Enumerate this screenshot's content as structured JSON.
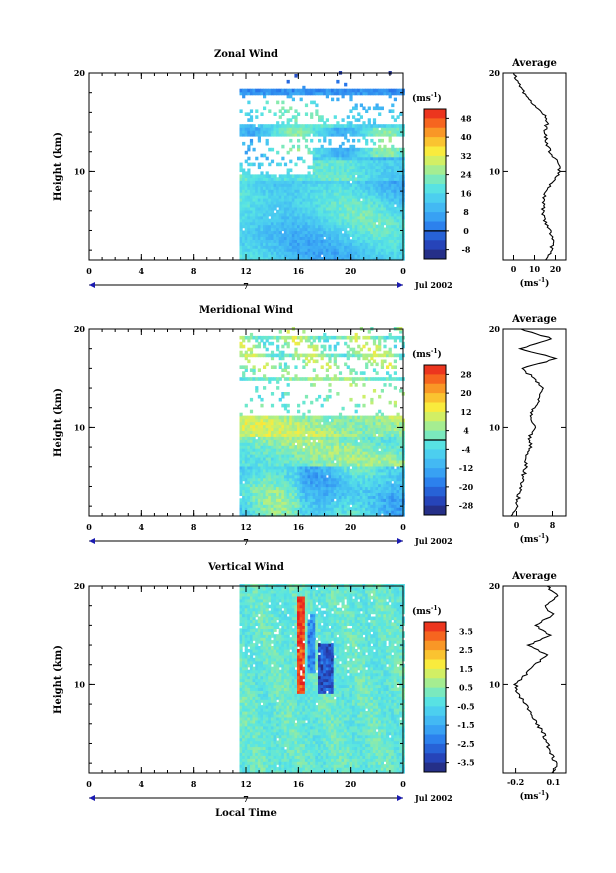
{
  "chart_data": [
    {
      "type": "heatmap",
      "title": "Zonal Wind",
      "ylabel": "Height (km)",
      "y_ticks": [
        "10",
        "20"
      ],
      "ylim": [
        1,
        20
      ],
      "x_ticks": [
        "0",
        "4",
        "8",
        "12",
        "16",
        "20",
        "0"
      ],
      "xlim": [
        0,
        24
      ],
      "data_start_hour": 11.5,
      "date_label": "Jul 2002",
      "day_label": "7",
      "colorbar_unit": "(ms",
      "colorbar_unit_exp": "-1",
      "colorbar_unit_close": ")",
      "colorbar_ticks": [
        "48",
        "40",
        "32",
        "24",
        "16",
        "8",
        "0",
        "-8"
      ],
      "colorbar_range": [
        -12,
        52
      ],
      "zero_contour": true,
      "profile": {
        "title": "Average",
        "x_ticks": [
          "0",
          "10",
          "20"
        ],
        "xlim": [
          -5,
          25
        ],
        "xlabel": "(ms",
        "xlabel_exp": "-1",
        "xlabel_close": ")",
        "y_ticks": [
          "10",
          "20"
        ],
        "heights": [
          1,
          2,
          3,
          4,
          5,
          6,
          7,
          8,
          9,
          10,
          11,
          12,
          13,
          14,
          15,
          16,
          17,
          18,
          19,
          20
        ],
        "values": [
          16,
          18,
          19,
          17,
          15,
          14,
          14,
          16,
          19,
          22,
          21,
          17,
          16,
          15,
          16,
          14,
          9,
          5,
          2,
          0
        ]
      }
    },
    {
      "type": "heatmap",
      "title": "Meridional Wind",
      "ylabel": "Height (km)",
      "y_ticks": [
        "10",
        "20"
      ],
      "ylim": [
        1,
        20
      ],
      "x_ticks": [
        "0",
        "4",
        "8",
        "12",
        "16",
        "20",
        "0"
      ],
      "xlim": [
        0,
        24
      ],
      "data_start_hour": 11.5,
      "date_label": "Jul 2002",
      "day_label": "7",
      "colorbar_unit": "(ms",
      "colorbar_unit_exp": "-1",
      "colorbar_unit_close": ")",
      "colorbar_ticks": [
        "28",
        "20",
        "12",
        "4",
        "-4",
        "-12",
        "-20",
        "-28"
      ],
      "colorbar_range": [
        -32,
        32
      ],
      "zero_contour": true,
      "profile": {
        "title": "Average",
        "x_ticks": [
          "0",
          "8"
        ],
        "xlim": [
          -3,
          11
        ],
        "xlabel": "(ms",
        "xlabel_exp": "-1",
        "xlabel_close": ")",
        "y_ticks": [
          "10",
          "20"
        ],
        "heights": [
          1,
          2,
          3,
          4,
          5,
          6,
          7,
          8,
          9,
          10,
          11,
          12,
          13,
          14,
          15,
          16,
          17,
          18,
          19,
          20
        ],
        "values": [
          -1,
          0,
          0.5,
          1,
          1.5,
          2,
          2,
          3,
          3,
          4,
          3,
          4,
          5,
          6,
          4,
          1,
          9,
          1,
          8,
          1
        ]
      }
    },
    {
      "type": "heatmap",
      "title": "Vertical Wind",
      "ylabel": "Height (km)",
      "y_ticks": [
        "10",
        "20"
      ],
      "ylim": [
        1,
        20
      ],
      "x_ticks": [
        "0",
        "4",
        "8",
        "12",
        "16",
        "20",
        "0"
      ],
      "xlim": [
        0,
        24
      ],
      "xlabel": "Local Time",
      "data_start_hour": 11.5,
      "date_label": "Jul 2002",
      "day_label": "7",
      "colorbar_unit": "(ms",
      "colorbar_unit_exp": "-1",
      "colorbar_unit_close": ")",
      "colorbar_ticks": [
        "3.5",
        "2.5",
        "1.5",
        "0.5",
        "-0.5",
        "-1.5",
        "-2.5",
        "-3.5"
      ],
      "colorbar_range": [
        -4,
        4
      ],
      "zero_contour": false,
      "profile": {
        "title": "Average",
        "x_ticks": [
          "-0.2",
          "0.1"
        ],
        "xlim": [
          -0.3,
          0.2
        ],
        "xlabel": "(ms",
        "xlabel_exp": "-1",
        "xlabel_close": ")",
        "y_ticks": [
          "10",
          "20"
        ],
        "heights": [
          1,
          2,
          3,
          4,
          5,
          6,
          7,
          8,
          9,
          10,
          11,
          12,
          13,
          14,
          15,
          16,
          17,
          18,
          19,
          20
        ],
        "values": [
          0.1,
          0.12,
          0.08,
          0.05,
          0.02,
          -0.03,
          -0.08,
          -0.12,
          -0.18,
          -0.2,
          -0.12,
          -0.05,
          0.05,
          -0.1,
          0.08,
          -0.05,
          0.1,
          0.03,
          0.13,
          0.05
        ]
      }
    }
  ]
}
